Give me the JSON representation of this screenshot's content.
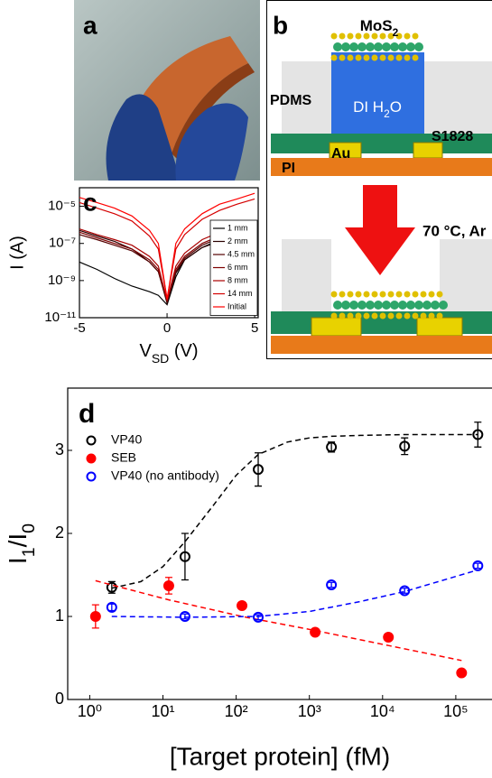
{
  "panel_a": {
    "label": "a"
  },
  "panel_b": {
    "label": "b",
    "mos2": [
      "MoS",
      "2"
    ],
    "pdms": "PDMS",
    "water": [
      "DI H",
      "2",
      "O"
    ],
    "resist": "S1828",
    "gold": "Au",
    "substrate": "PI",
    "condition": "70 °C, Ar"
  },
  "chart_data": [
    {
      "type": "line",
      "panel_label": "c",
      "x_label": [
        "V",
        "SD",
        " (V)"
      ],
      "y_label": "I (A)",
      "ylog": true,
      "xlim": [
        -5,
        5.2
      ],
      "ylim": [
        1e-11,
        0.0001
      ],
      "xticks": [
        -5,
        0,
        5
      ],
      "yticks": [
        {
          "value": 1e-11,
          "label": "10⁻¹¹"
        },
        {
          "value": 1e-09,
          "label": "10⁻⁹"
        },
        {
          "value": 1e-07,
          "label": "10⁻⁷"
        },
        {
          "value": 1e-05,
          "label": "10⁻⁵"
        }
      ],
      "x": [
        -5,
        -4,
        -3,
        -2,
        -1,
        -0.5,
        0,
        0.5,
        1,
        2,
        3,
        4,
        5
      ],
      "series": [
        {
          "name": "1 mm",
          "color": "#000000",
          "values": [
            1e-08,
            4e-09,
            1.3e-09,
            5e-10,
            2.5e-10,
            1.6e-10,
            5e-11,
            1.6e-09,
            1.3e-08,
            6e-08,
            1.6e-07,
            3e-07,
            6e-07
          ]
        },
        {
          "name": "2 mm",
          "color": "#2a0000",
          "values": [
            5e-07,
            2.5e-07,
            1.3e-07,
            5e-08,
            1e-08,
            3e-09,
            6e-11,
            2.5e-09,
            1.3e-08,
            6e-08,
            1.3e-07,
            2.5e-07,
            4e-07
          ]
        },
        {
          "name": "4.5 mm",
          "color": "#550000",
          "values": [
            3e-07,
            1.6e-07,
            8e-08,
            4e-08,
            1e-08,
            3e-09,
            8e-11,
            3e-09,
            1.6e-08,
            8e-08,
            2e-07,
            4e-07,
            8e-07
          ]
        },
        {
          "name": "6 mm",
          "color": "#7f0000",
          "values": [
            4e-07,
            2e-07,
            1e-07,
            5e-08,
            1.3e-08,
            4e-09,
            8e-11,
            4e-09,
            2e-08,
            1e-07,
            2.5e-07,
            5e-07,
            1e-06
          ]
        },
        {
          "name": "8 mm",
          "color": "#aa0000",
          "values": [
            6e-07,
            3e-07,
            1.6e-07,
            8e-08,
            2e-08,
            6e-09,
            8e-11,
            6e-09,
            3e-08,
            1.6e-07,
            4e-07,
            8e-07,
            1.6e-06
          ]
        },
        {
          "name": "14 mm",
          "color": "#d40000",
          "values": [
            1.6e-05,
            8e-06,
            4e-06,
            1.6e-06,
            2.5e-07,
            5e-08,
            1e-10,
            5e-08,
            3e-07,
            2e-06,
            6e-06,
            1.3e-05,
            2.5e-05
          ]
        },
        {
          "name": "Initial",
          "color": "#ff0000",
          "values": [
            3e-05,
            1.6e-05,
            8e-06,
            3e-06,
            5e-07,
            1e-07,
            1e-10,
            1e-07,
            6e-07,
            4e-06,
            1.3e-05,
            2.5e-05,
            5e-05
          ]
        }
      ]
    },
    {
      "type": "scatter",
      "panel_label": "d",
      "x_label": "[Target protein] (fM)",
      "y_label": [
        "I",
        "1",
        "/I",
        "0"
      ],
      "xlog": true,
      "xlim": [
        0.5,
        340000
      ],
      "ylim": [
        0,
        3.75
      ],
      "xticks": [
        {
          "value": 1,
          "label": "10⁰"
        },
        {
          "value": 10,
          "label": "10¹"
        },
        {
          "value": 100,
          "label": "10²"
        },
        {
          "value": 1000,
          "label": "10³"
        },
        {
          "value": 10000,
          "label": "10⁴"
        },
        {
          "value": 100000,
          "label": "10⁵"
        }
      ],
      "yticks": [
        0,
        1,
        2,
        3
      ],
      "series": [
        {
          "name": "VP40",
          "color": "#000000",
          "filled": false,
          "x": [
            2,
            20,
            200,
            2000,
            20000,
            200000
          ],
          "values": [
            1.35,
            1.72,
            2.77,
            3.04,
            3.05,
            3.19
          ],
          "errors": [
            0.07,
            0.28,
            0.2,
            0.06,
            0.1,
            0.15
          ],
          "fit": {
            "x": [
              2,
              5,
              10,
              20,
              50,
              100,
              200,
              500,
              1000,
              2000,
              5000,
              20000,
              200000
            ],
            "values": [
              1.34,
              1.42,
              1.6,
              1.9,
              2.35,
              2.7,
              2.95,
              3.1,
              3.15,
              3.17,
              3.18,
              3.19,
              3.19
            ]
          }
        },
        {
          "name": "SEB",
          "color": "#ff0000",
          "filled": true,
          "x": [
            1.2,
            12,
            120,
            1200,
            12000,
            120000
          ],
          "values": [
            1.0,
            1.37,
            1.13,
            0.81,
            0.75,
            0.32
          ],
          "errors": [
            0.14,
            0.1,
            0.03,
            0.03,
            0.03,
            0.03
          ],
          "fit": {
            "x": [
              1.2,
              12,
              120,
              1200,
              12000,
              120000
            ],
            "values": [
              1.43,
              1.2,
              1.0,
              0.83,
              0.65,
              0.47
            ]
          }
        },
        {
          "name": "VP40 (no antibody)",
          "color": "#0000ff",
          "filled": false,
          "x": [
            2,
            20,
            200,
            2000,
            20000,
            200000
          ],
          "values": [
            1.11,
            1.0,
            0.99,
            1.38,
            1.31,
            1.61
          ],
          "errors": [
            0.04,
            0.03,
            0.03,
            0.03,
            0.03,
            0.03
          ],
          "fit": {
            "x": [
              2,
              20,
              200,
              1000,
              5000,
              20000,
              200000
            ],
            "values": [
              1.0,
              0.99,
              1.0,
              1.06,
              1.18,
              1.3,
              1.56
            ]
          }
        }
      ]
    }
  ]
}
